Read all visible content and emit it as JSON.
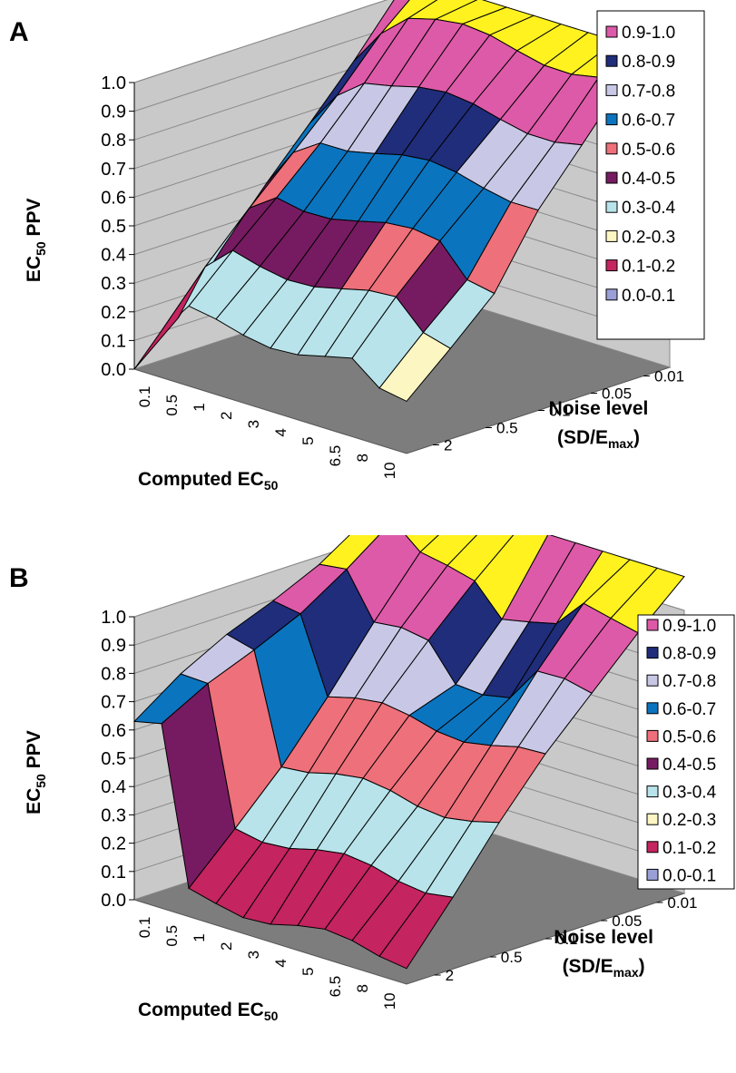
{
  "legend_colors": [
    "#dd5aa8",
    "#1f2d7a",
    "#c8c8e6",
    "#0b74be",
    "#ee707a",
    "#761b61",
    "#b8e3ea",
    "#fcf6c3",
    "#c4245f",
    "#9aa0d6"
  ],
  "surface_top_color": "#fff21f",
  "wall_color": "#c9c9c9",
  "floor_color": "#7d7d7d",
  "chart_data": [
    {
      "panel_label": "A",
      "type": "surface",
      "zlabel_main": "EC",
      "zlabel_sub": "50",
      "zlabel_tail": " PPV",
      "xlabel_main": "Computed EC",
      "xlabel_sub": "50",
      "ylabel_line1": "Noise level",
      "ylabel_line2_pre": "(SD/E",
      "ylabel_line2_sub": "max",
      "ylabel_line2_post": ")",
      "z_ticks": [
        "0.0",
        "0.1",
        "0.2",
        "0.3",
        "0.4",
        "0.5",
        "0.6",
        "0.7",
        "0.8",
        "0.9",
        "1.0"
      ],
      "zlim": [
        0,
        1
      ],
      "x_ticks": [
        "0.1",
        "0.5",
        "1",
        "2",
        "3",
        "4",
        "5",
        "6.5",
        "8",
        "10"
      ],
      "y_ticks": [
        "0.01",
        "0.05",
        "0.1",
        "0.5",
        "2"
      ],
      "legend": [
        "0.9-1.0",
        "0.8-0.9",
        "0.7-0.8",
        "0.6-0.7",
        "0.5-0.6",
        "0.4-0.5",
        "0.3-0.4",
        "0.2-0.3",
        "0.1-0.2",
        "0.0-0.1"
      ],
      "legend_placement": "top-right",
      "grid": true
    },
    {
      "panel_label": "B",
      "type": "surface",
      "zlabel_main": "EC",
      "zlabel_sub": "50",
      "zlabel_tail": " PPV",
      "xlabel_main": "Computed EC",
      "xlabel_sub": "50",
      "ylabel_line1": "Noise level",
      "ylabel_line2_pre": "(SD/E",
      "ylabel_line2_sub": "max",
      "ylabel_line2_post": ")",
      "z_ticks": [
        "0.0",
        "0.1",
        "0.2",
        "0.3",
        "0.4",
        "0.5",
        "0.6",
        "0.7",
        "0.8",
        "0.9",
        "1.0"
      ],
      "zlim": [
        0,
        1
      ],
      "x_ticks": [
        "0.1",
        "0.5",
        "1",
        "2",
        "3",
        "4",
        "5",
        "6.5",
        "8",
        "10"
      ],
      "y_ticks": [
        "0.01",
        "0.05",
        "0.1",
        "0.5",
        "2"
      ],
      "legend": [
        "0.9-1.0",
        "0.8-0.9",
        "0.7-0.8",
        "0.6-0.7",
        "0.5-0.6",
        "0.4-0.5",
        "0.3-0.4",
        "0.2-0.3",
        "0.1-0.2",
        "0.0-0.1"
      ],
      "legend_placement": "right",
      "grid": true
    }
  ]
}
